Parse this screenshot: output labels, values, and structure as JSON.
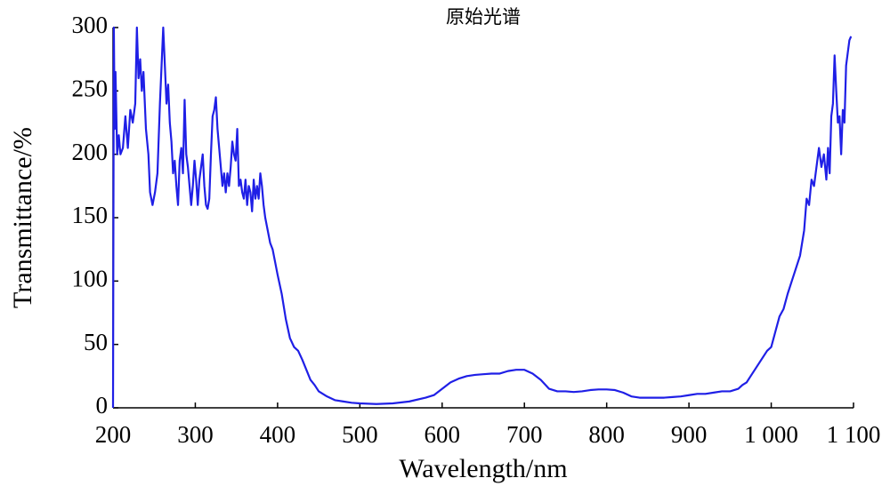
{
  "chart_data": {
    "type": "line",
    "title": "原始光谱",
    "x_label": "Wavelength/nm",
    "y_label": "Transmittance/%",
    "color": "#1f1fe6",
    "xlim": [
      200,
      1100
    ],
    "ylim": [
      0,
      300
    ],
    "xticks": [
      200,
      300,
      400,
      500,
      600,
      700,
      800,
      900,
      {
        "value": 1000,
        "label": "1 000"
      },
      {
        "value": 1100,
        "label": "1 100"
      }
    ],
    "yticks": [
      0,
      50,
      100,
      150,
      200,
      250,
      300
    ],
    "x": [
      200,
      201,
      202,
      203,
      205,
      207,
      209,
      212,
      215,
      218,
      221,
      224,
      227,
      229,
      231,
      233,
      235,
      237,
      240,
      243,
      245,
      248,
      251,
      254,
      257,
      259,
      261,
      263,
      265,
      267,
      269,
      271,
      273,
      275,
      277,
      279,
      281,
      283,
      285,
      287,
      289,
      291,
      293,
      295,
      297,
      299,
      301,
      303,
      305,
      307,
      309,
      311,
      313,
      315,
      317,
      319,
      321,
      323,
      325,
      327,
      329,
      331,
      333,
      335,
      337,
      339,
      341,
      343,
      345,
      347,
      349,
      351,
      353,
      355,
      357,
      359,
      361,
      363,
      365,
      367,
      369,
      371,
      373,
      375,
      377,
      379,
      381,
      383,
      385,
      388,
      391,
      394,
      397,
      400,
      405,
      410,
      415,
      420,
      425,
      430,
      435,
      440,
      445,
      450,
      460,
      470,
      480,
      490,
      500,
      520,
      540,
      560,
      580,
      590,
      600,
      610,
      620,
      630,
      640,
      650,
      660,
      670,
      680,
      690,
      700,
      710,
      720,
      730,
      740,
      750,
      760,
      770,
      780,
      790,
      800,
      810,
      820,
      830,
      840,
      850,
      860,
      870,
      880,
      890,
      900,
      910,
      920,
      930,
      940,
      950,
      960,
      965,
      970,
      975,
      980,
      985,
      990,
      995,
      1000,
      1005,
      1010,
      1015,
      1020,
      1025,
      1030,
      1035,
      1040,
      1043,
      1046,
      1049,
      1052,
      1055,
      1058,
      1061,
      1064,
      1067,
      1069,
      1071,
      1073,
      1075,
      1077,
      1079,
      1081,
      1083,
      1085,
      1087,
      1089,
      1091,
      1093,
      1095,
      1097
    ],
    "values": [
      0,
      300,
      220,
      265,
      200,
      215,
      200,
      205,
      230,
      205,
      235,
      225,
      240,
      300,
      260,
      275,
      250,
      265,
      220,
      200,
      170,
      160,
      170,
      185,
      240,
      270,
      300,
      270,
      240,
      255,
      225,
      210,
      185,
      195,
      175,
      160,
      195,
      205,
      185,
      243,
      200,
      190,
      175,
      160,
      175,
      195,
      180,
      160,
      180,
      190,
      200,
      175,
      160,
      157,
      165,
      200,
      230,
      235,
      245,
      220,
      205,
      190,
      175,
      185,
      170,
      185,
      175,
      190,
      210,
      200,
      195,
      220,
      175,
      180,
      170,
      165,
      180,
      160,
      175,
      170,
      155,
      180,
      165,
      175,
      165,
      185,
      175,
      160,
      150,
      140,
      130,
      125,
      115,
      105,
      90,
      70,
      55,
      48,
      45,
      38,
      30,
      22,
      18,
      13,
      9,
      6,
      5,
      4,
      3.5,
      3,
      3.5,
      5,
      8,
      10,
      15,
      20,
      23,
      25,
      26,
      26.5,
      27,
      27,
      29,
      30,
      30,
      27,
      22,
      15,
      13,
      13,
      12.5,
      13,
      14,
      14.5,
      14.5,
      14,
      12,
      9,
      8,
      8,
      8,
      8,
      8.5,
      9,
      10,
      11,
      11,
      12,
      13,
      13,
      15,
      18,
      20,
      25,
      30,
      35,
      40,
      45,
      48,
      60,
      72,
      78,
      90,
      100,
      110,
      120,
      140,
      165,
      160,
      180,
      175,
      190,
      205,
      190,
      200,
      180,
      205,
      185,
      230,
      240,
      278,
      250,
      225,
      230,
      200,
      235,
      225,
      270,
      280,
      290,
      293
    ]
  }
}
